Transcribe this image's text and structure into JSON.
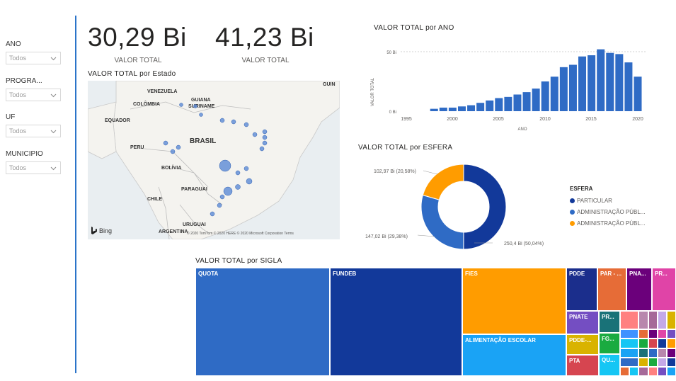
{
  "filters": [
    {
      "label": "ANO",
      "value": "Todos"
    },
    {
      "label": "PROGRA...",
      "value": "Todos"
    },
    {
      "label": "UF",
      "value": "Todos"
    },
    {
      "label": "MUNICIPIO",
      "value": "Todos"
    }
  ],
  "kpis": [
    {
      "value": "30,29 Bi",
      "label": "VALOR TOTAL"
    },
    {
      "value": "41,23 Bi",
      "label": "VALOR TOTAL"
    }
  ],
  "map": {
    "title": "VALOR TOTAL por Estado",
    "labels": [
      "VENEZUELA",
      "GUIANA",
      "SURINAME",
      "COLÔMBIA",
      "EQUADOR",
      "BRASIL",
      "PERU",
      "BOLÍVIA",
      "PARAGUAI",
      "CHILE",
      "URUGUAI",
      "ARGENTINA",
      "GUIN"
    ],
    "bing": "Bing",
    "copyright": "© 2020 TomTom © 2020 HERE © 2020 Microsoft Corporation Terms"
  },
  "bar_chart": {
    "title": "VALOR TOTAL por ANO",
    "xlabel": "ANO",
    "ylabel": "VALOR TOTAL",
    "ytick_labels": [
      "0 Bi",
      "50 Bi"
    ],
    "xtick_labels": [
      "1995",
      "2000",
      "2005",
      "2010",
      "2015",
      "2020"
    ],
    "color": "#2f6bc5"
  },
  "donut": {
    "title": "VALOR TOTAL por ESFERA",
    "legend_title": "ESFERA",
    "slices": [
      {
        "name": "PARTICULAR",
        "share": 50.04,
        "label": "250,4 Bi (50,04%)",
        "color": "#12399a"
      },
      {
        "name": "ADMINISTRAÇÃO PÚBL...",
        "share": 29.38,
        "label": "147,02 Bi (29,38%)",
        "color": "#2f6bc5"
      },
      {
        "name": "ADMINISTRAÇÃO PÚBL...",
        "share": 20.58,
        "label": "102,97 Bi (20,58%)",
        "color": "#ff9c00"
      }
    ]
  },
  "treemap": {
    "title": "VALOR TOTAL por SIGLA",
    "labels": {
      "quota": "QUOTA",
      "fundeb": "FUNDEB",
      "fies": "FIES",
      "alimentacao": "ALIMENTAÇÃO ESCOLAR",
      "pdde": "PDDE",
      "par": "PAR - ...",
      "pna": "PNA...",
      "pr_top": "PR...",
      "pnate": "PNATE",
      "pr_mid": "PR...",
      "pdde2": "PDDE-...",
      "fg": "FG...",
      "pta": "PTA",
      "qu": "QU..."
    },
    "colors": {
      "quota": "#2f6bc5",
      "fundeb": "#12399a",
      "fies": "#ff9c00",
      "alimentacao": "#1aa3f5",
      "pdde": "#1b2e8c",
      "par": "#e66c37",
      "pna": "#6b007b",
      "pr_top": "#e044a7",
      "pnate": "#744ec2",
      "pr_mid": "#118dff",
      "pdde2": "#d9b300",
      "fg": "#1aab40",
      "pta": "#d64550",
      "qu": "#15c6f4"
    }
  },
  "chart_data": [
    {
      "type": "bar",
      "title": "VALOR TOTAL por ANO",
      "xlabel": "ANO",
      "ylabel": "VALOR TOTAL",
      "categories": [
        1998,
        1999,
        2000,
        2001,
        2002,
        2003,
        2004,
        2005,
        2006,
        2007,
        2008,
        2009,
        2010,
        2011,
        2012,
        2013,
        2014,
        2015,
        2016,
        2017,
        2018,
        2019,
        2020
      ],
      "values": [
        2,
        3,
        3,
        4,
        5,
        7,
        9,
        11,
        12,
        14,
        16,
        19,
        25,
        29,
        37,
        39,
        46,
        47,
        52,
        49,
        48,
        41,
        29
      ],
      "ylim": [
        0,
        60
      ],
      "xlim": [
        1993,
        2021
      ]
    },
    {
      "type": "pie",
      "title": "VALOR TOTAL por ESFERA",
      "categories": [
        "PARTICULAR",
        "ADMINISTRAÇÃO PÚBL...",
        "ADMINISTRAÇÃO PÚBL..."
      ],
      "values": [
        250.4,
        147.02,
        102.97
      ]
    }
  ]
}
